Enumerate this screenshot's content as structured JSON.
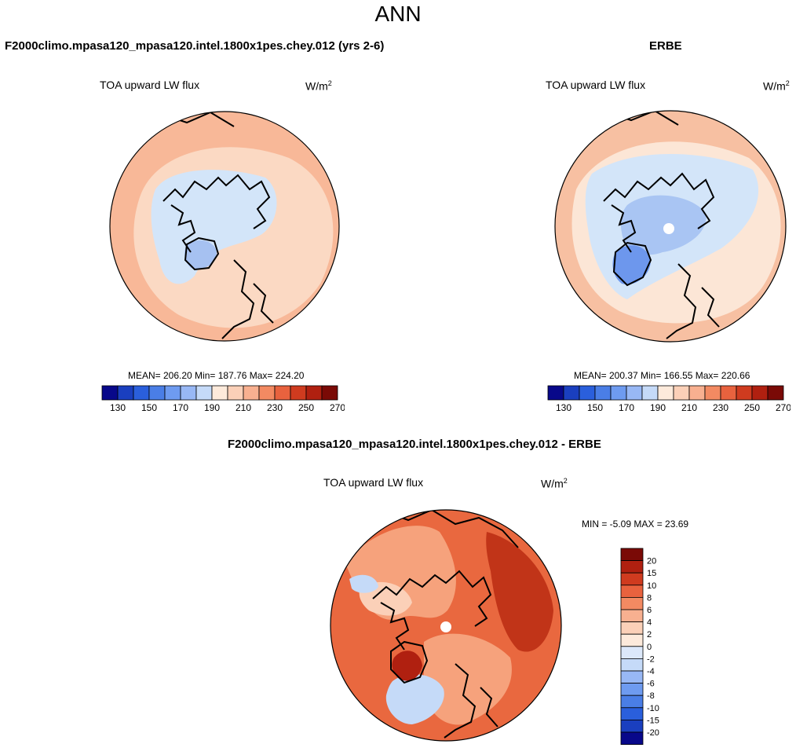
{
  "page": {
    "title": "ANN"
  },
  "panels": [
    {
      "title": "F2000climo.mpasa120_mpasa120.intel.1800x1pes.chey.012 (yrs 2-6)",
      "variable": "TOA upward LW flux",
      "units": "W/m",
      "units_sup": "2",
      "stats_text": "MEAN= 206.20  Min= 187.76  Max= 224.20"
    },
    {
      "title": "ERBE",
      "variable": "TOA upward LW flux",
      "units": "W/m",
      "units_sup": "2",
      "stats_text": "MEAN= 200.37  Min= 166.55  Max= 220.66"
    },
    {
      "title": "F2000climo.mpasa120_mpasa120.intel.1800x1pes.chey.012 - ERBE",
      "variable": "TOA upward LW flux",
      "units": "W/m",
      "units_sup": "2",
      "stats_text": "MIN =  -5.09 MAX =  23.69"
    }
  ],
  "colorbars": {
    "abs": {
      "colors": [
        "#08088a",
        "#1a3fbf",
        "#2a5fdc",
        "#4a7ee6",
        "#6e9bf0",
        "#98b8f5",
        "#c5daf8",
        "#fdeadb",
        "#fbd0b8",
        "#f8b090",
        "#f38a62",
        "#e8623e",
        "#cf3b1f",
        "#b02010",
        "#7a0a06"
      ],
      "labels": [
        "130",
        "150",
        "170",
        "190",
        "210",
        "230",
        "250",
        "270"
      ]
    },
    "diff": {
      "colors": [
        "#7a0a06",
        "#b02010",
        "#cf3b1f",
        "#e8623e",
        "#f38a62",
        "#f8b090",
        "#fbd0b8",
        "#fdeadb",
        "#dce8fa",
        "#c5daf8",
        "#98b8f5",
        "#6e9bf0",
        "#4a7ee6",
        "#2a5fdc",
        "#1a3fbf",
        "#08088a"
      ],
      "labels": [
        "20",
        "15",
        "10",
        "8",
        "6",
        "4",
        "2",
        "0",
        "-2",
        "-4",
        "-6",
        "-8",
        "-10",
        "-15",
        "-20"
      ]
    }
  },
  "map_colors": {
    "model_bg": "#f8b898",
    "model_ring": "#fbd9c3",
    "model_polar": "#d3e5f9",
    "model_greenland": "#a6c1f1",
    "obs_bg": "#f7c0a2",
    "obs_ring": "#fce6d6",
    "obs_polar": "#d3e5f9",
    "obs_polar_inner": "#a9c5f3",
    "obs_greenland": "#6d97ed",
    "diff_bg": "#e9683f",
    "diff_mid": "#f6a27c",
    "diff_light": "#fbd0b8",
    "diff_blue": "#c5daf8",
    "diff_dark": "#c13418",
    "diff_hot": "#b02010"
  }
}
